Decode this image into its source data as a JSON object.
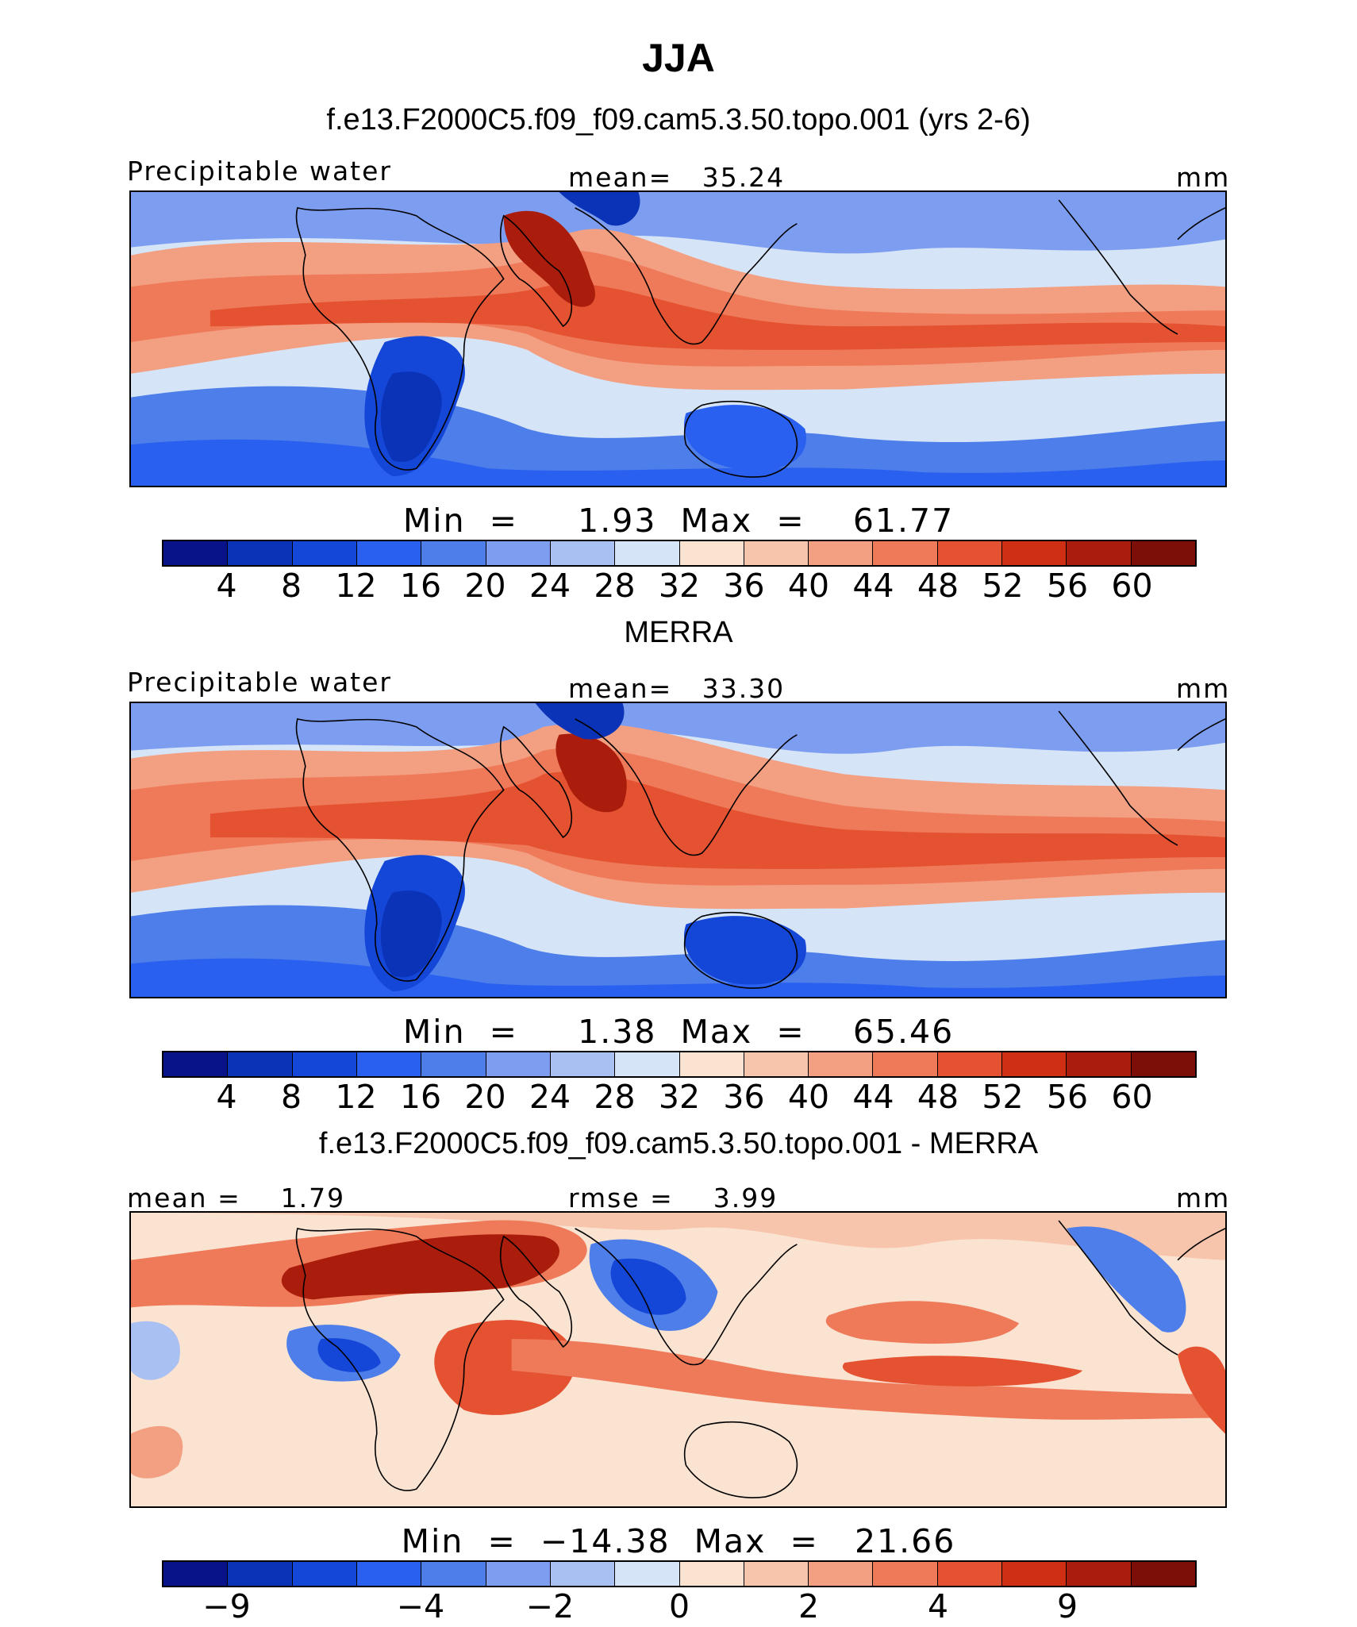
{
  "title": "JJA",
  "palette_seq": [
    "#08138a",
    "#0a33b8",
    "#1446d8",
    "#2a60ef",
    "#4d7eea",
    "#7d9ef0",
    "#a9c0f2",
    "#d6e4f7",
    "#fbe3d2",
    "#f7c4ac",
    "#f39f82",
    "#ef7a59",
    "#e45231",
    "#cf3013",
    "#aa1d0c",
    "#7c0f08"
  ],
  "panels": [
    {
      "title": "f.e13.F2000C5.f09_f09.cam5.3.50.topo.001 (yrs 2-6)",
      "left_label": "Precipitable water",
      "center_label": "mean=   35.24",
      "right_label": "mm",
      "minmax": "Min  =     1.93  Max  =    61.77",
      "ticks": [
        "4",
        "8",
        "12",
        "16",
        "20",
        "24",
        "28",
        "32",
        "36",
        "40",
        "44",
        "48",
        "52",
        "56",
        "60"
      ],
      "colorbar_colors": [
        "#08138a",
        "#0a33b8",
        "#1446d8",
        "#2a60ef",
        "#4d7eea",
        "#7d9ef0",
        "#a9c0f2",
        "#d6e4f7",
        "#fbe3d2",
        "#f7c4ac",
        "#f39f82",
        "#ef7a59",
        "#e45231",
        "#cf3013",
        "#aa1d0c",
        "#7c0f08"
      ]
    },
    {
      "title": "MERRA",
      "left_label": "Precipitable water",
      "center_label": "mean=   33.30",
      "right_label": "mm",
      "minmax": "Min  =     1.38  Max  =    65.46",
      "ticks": [
        "4",
        "8",
        "12",
        "16",
        "20",
        "24",
        "28",
        "32",
        "36",
        "40",
        "44",
        "48",
        "52",
        "56",
        "60"
      ],
      "colorbar_colors": [
        "#08138a",
        "#0a33b8",
        "#1446d8",
        "#2a60ef",
        "#4d7eea",
        "#7d9ef0",
        "#a9c0f2",
        "#d6e4f7",
        "#fbe3d2",
        "#f7c4ac",
        "#f39f82",
        "#ef7a59",
        "#e45231",
        "#cf3013",
        "#aa1d0c",
        "#7c0f08"
      ]
    },
    {
      "title": "f.e13.F2000C5.f09_f09.cam5.3.50.topo.001 - MERRA",
      "left_label": "mean =    1.79",
      "center_label": "rmse =    3.99",
      "right_label": "mm",
      "minmax": "Min  =  −14.38  Max  =   21.66",
      "ticks": [
        "−9",
        "−4",
        "−2",
        "0",
        "2",
        "4",
        "9"
      ],
      "colorbar_colors": [
        "#08138a",
        "#0a33b8",
        "#1446d8",
        "#2a60ef",
        "#4d7eea",
        "#7d9ef0",
        "#a9c0f2",
        "#d6e4f7",
        "#fbe3d2",
        "#f7c4ac",
        "#f39f82",
        "#ef7a59",
        "#e45231",
        "#cf3013",
        "#aa1d0c",
        "#7c0f08"
      ]
    }
  ]
}
